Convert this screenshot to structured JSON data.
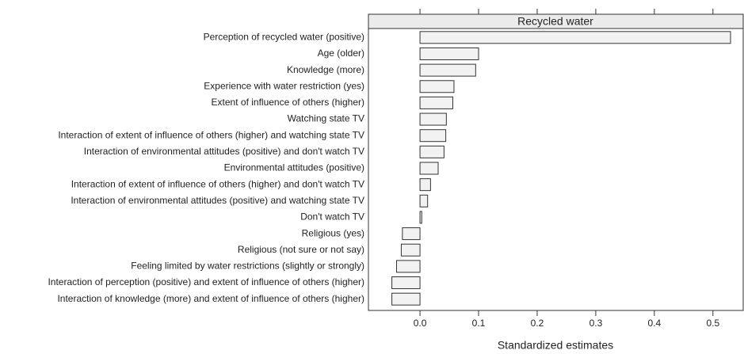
{
  "chart_data": {
    "type": "bar",
    "orientation": "horizontal",
    "panel_title": "Recycled water",
    "x_label": "Standardized estimates",
    "categories": [
      "Perception of recycled water (positive)",
      "Age (older)",
      "Knowledge (more)",
      "Experience with water restriction (yes)",
      "Extent of influence of others (higher)",
      "Watching state TV",
      "Interaction of extent of influence of others (higher) and watching state TV",
      "Interaction of environmental attitudes (positive) and don't watch TV",
      "Environmental attitudes (positive)",
      "Interaction of extent of influence of others (higher) and don't watch TV",
      "Interaction of environmental attitudes (positive) and watching state TV",
      "Don't watch TV",
      "Religious (yes)",
      "Religious (not sure or not say)",
      "Feeling limited by water restrictions (slightly or strongly)",
      "Interaction of perception (positive) and extent of influence of others (higher)",
      "Interaction of knowledge (more) and extent of influence of others (higher)"
    ],
    "values": [
      0.53,
      0.1,
      0.095,
      0.058,
      0.056,
      0.045,
      0.044,
      0.041,
      0.031,
      0.018,
      0.013,
      0.003,
      -0.03,
      -0.032,
      -0.04,
      -0.048,
      -0.048
    ],
    "color": "#f2f2f2",
    "xlim": [
      -0.088,
      0.553
    ],
    "xticks": [
      {
        "value": 0,
        "label": "0.0"
      },
      0.1,
      0.2,
      0.3,
      0.4,
      0.5
    ]
  }
}
